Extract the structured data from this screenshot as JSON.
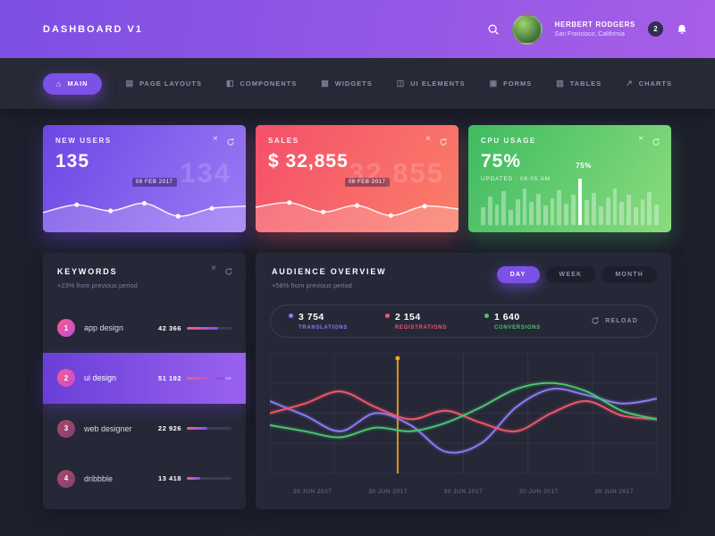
{
  "icons": {
    "close": "×"
  },
  "header": {
    "title": "DASHBOARD V1",
    "user_name": "HERBERT RODGERS",
    "user_location": "San Francisco, California",
    "notification_count": "2"
  },
  "nav": {
    "items": [
      {
        "label": "MAIN",
        "icon": "⌂"
      },
      {
        "label": "PAGE LAYOUTS",
        "icon": "▤"
      },
      {
        "label": "COMPONENTS",
        "icon": "◧"
      },
      {
        "label": "WIDGETS",
        "icon": "▦"
      },
      {
        "label": "UI ELEMENTS",
        "icon": "◫"
      },
      {
        "label": "FORMS",
        "icon": "▣"
      },
      {
        "label": "TABLES",
        "icon": "▥"
      },
      {
        "label": "CHARTS",
        "icon": "↗"
      }
    ]
  },
  "cards": [
    {
      "title": "NEW USERS",
      "value": "135",
      "ghost_value": "134",
      "date_label": "08 FEB 2017",
      "spark": {
        "values": [
          40,
          62,
          45,
          66,
          30,
          52,
          58
        ]
      }
    },
    {
      "title": "SALES",
      "value": "$ 32,855",
      "ghost_value": "32,855",
      "date_label": "08 FEB 2017",
      "spark": {
        "values": [
          55,
          68,
          42,
          60,
          32,
          58,
          50
        ]
      }
    },
    {
      "title": "CPU USAGE",
      "value": "75%",
      "updated_label": "UPDATED : 08:05 AM",
      "tooltip": "75%",
      "bars": {
        "values": [
          35,
          55,
          40,
          65,
          30,
          50,
          70,
          45,
          60,
          38,
          52,
          68,
          42,
          58,
          90,
          48,
          62,
          36,
          54,
          70,
          44,
          58,
          34,
          50,
          64,
          40
        ],
        "highlight_index": 14
      }
    }
  ],
  "keywords": {
    "title": "KEYWORDS",
    "subtitle": "+23% from previous period",
    "items": [
      {
        "rank": "1",
        "label": "app design",
        "value": "42 366",
        "progress": 70
      },
      {
        "rank": "2",
        "label": "ui design",
        "value": "51 192",
        "progress": 85
      },
      {
        "rank": "3",
        "label": "web designer",
        "value": "22 926",
        "progress": 45
      },
      {
        "rank": "4",
        "label": "dribbble",
        "value": "13 418",
        "progress": 30
      }
    ]
  },
  "audience": {
    "title": "AUDIENCE OVERVIEW",
    "subtitle": "+58% from previous period",
    "tabs": [
      {
        "label": "DAY"
      },
      {
        "label": "WEEK"
      },
      {
        "label": "MONTH"
      }
    ],
    "stats": [
      {
        "value": "3 754",
        "label": "TRANSLATIONS",
        "color": "#8d7bf5"
      },
      {
        "value": "2 154",
        "label": "REGISTRATIONS",
        "color": "#f4556b"
      },
      {
        "value": "1 640",
        "label": "CONVERSIONS",
        "color": "#49c56f"
      }
    ],
    "reload_label": "RELOAD",
    "x_labels": [
      "30 JUN 2017",
      "30 JUN 2017",
      "30 JUN 2017",
      "30 JUN 2017",
      "30 JUN 2017"
    ]
  },
  "chart_data": {
    "type": "line",
    "title": "AUDIENCE OVERVIEW",
    "legend_position": "top",
    "grid": true,
    "series": [
      {
        "name": "TRANSLATIONS",
        "color": "#8d7bf5",
        "values": [
          60,
          48,
          35,
          50,
          40,
          18,
          25,
          55,
          70,
          65,
          58,
          62
        ]
      },
      {
        "name": "REGISTRATIONS",
        "color": "#f4556b",
        "values": [
          50,
          58,
          68,
          55,
          45,
          52,
          42,
          35,
          50,
          60,
          48,
          45
        ]
      },
      {
        "name": "CONVERSIONS",
        "color": "#49c56f",
        "values": [
          40,
          35,
          30,
          38,
          35,
          42,
          55,
          70,
          75,
          68,
          52,
          45
        ]
      }
    ],
    "marker_x": 0.33,
    "marker_color": "#f5a623",
    "x_labels": [
      "30 JUN 2017",
      "30 JUN 2017",
      "30 JUN 2017",
      "30 JUN 2017",
      "30 JUN 2017"
    ]
  }
}
